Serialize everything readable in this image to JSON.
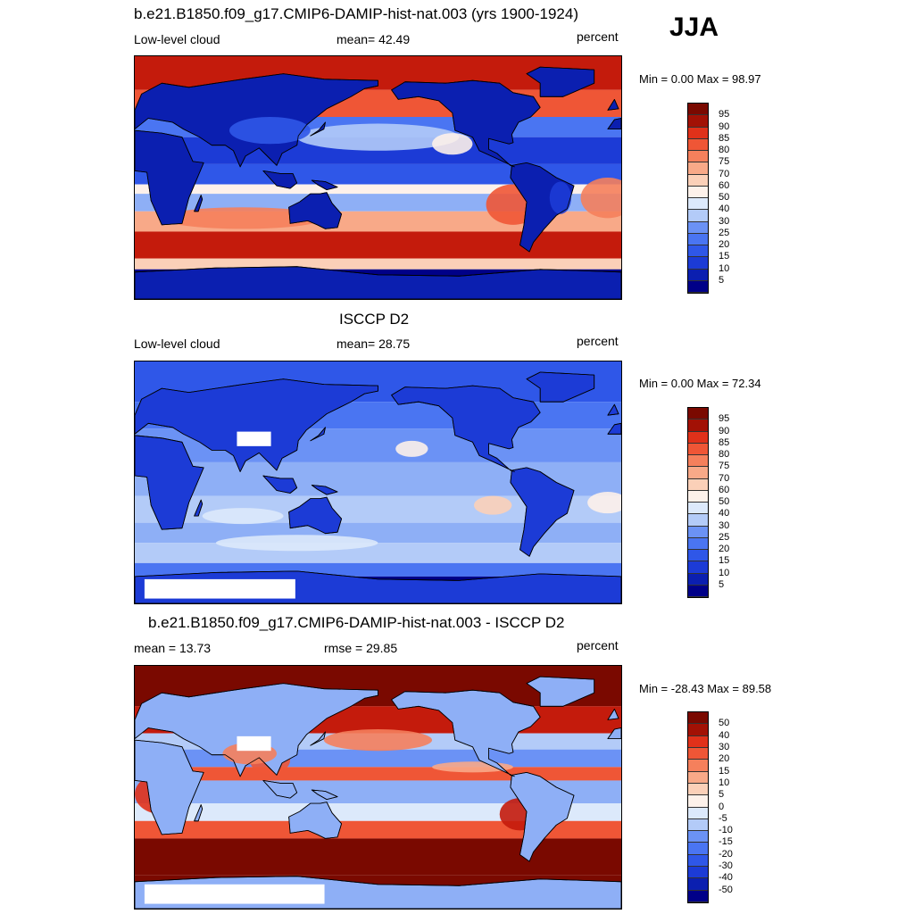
{
  "season": "JJA",
  "colors": {
    "full": [
      "#000088",
      "#0b1fb0",
      "#1c3bd6",
      "#2f57e8",
      "#4a75f2",
      "#6b92f5",
      "#8eaff6",
      "#b3cbf8",
      "#dce9fb",
      "#fdf1ea",
      "#fbd0b8",
      "#f8a988",
      "#f5805c",
      "#ef5636",
      "#e0311a",
      "#c41b0c",
      "#a21105",
      "#7a0900"
    ],
    "diff": [
      "#000088",
      "#0b1fb0",
      "#1c3bd6",
      "#2f57e8",
      "#4a75f2",
      "#6b92f5",
      "#8eaff6",
      "#b3cbf8",
      "#dce9fb",
      "#fdf1ea",
      "#fbd0b8",
      "#f8a988",
      "#f5805c",
      "#ef5636",
      "#e0311a",
      "#c41b0c",
      "#a21105",
      "#7a0900"
    ]
  },
  "panels": [
    {
      "id": "model",
      "title": "b.e21.B1850.f09_g17.CMIP6-DAMIP-hist-nat.003 (yrs 1900-1924)",
      "left_label": "Low-level cloud",
      "center_label": "mean=  42.49",
      "right_label": "percent",
      "minmax": "Min =   0.00 Max =  98.97",
      "scheme": "model",
      "colorbar_labels": [
        "95",
        "90",
        "85",
        "80",
        "75",
        "70",
        "60",
        "50",
        "40",
        "30",
        "25",
        "20",
        "15",
        "10",
        "5"
      ]
    },
    {
      "id": "obs",
      "title": "ISCCP D2",
      "left_label": "Low-level cloud",
      "center_label": "mean=  28.75",
      "right_label": "percent",
      "minmax": "Min =   0.00 Max =  72.34",
      "scheme": "obs",
      "colorbar_labels": [
        "95",
        "90",
        "85",
        "80",
        "75",
        "70",
        "60",
        "50",
        "40",
        "30",
        "25",
        "20",
        "15",
        "10",
        "5"
      ]
    },
    {
      "id": "diff",
      "title": "b.e21.B1850.f09_g17.CMIP6-DAMIP-hist-nat.003 - ISCCP D2",
      "left_label": "mean =  13.73",
      "center_label": "rmse =  29.85",
      "right_label": "percent",
      "minmax": "Min = -28.43 Max =  89.58",
      "scheme": "diff",
      "colorbar_labels": [
        "50",
        "40",
        "30",
        "20",
        "15",
        "10",
        "5",
        "0",
        "-5",
        "-10",
        "-15",
        "-20",
        "-30",
        "-40",
        "-50"
      ]
    }
  ]
}
